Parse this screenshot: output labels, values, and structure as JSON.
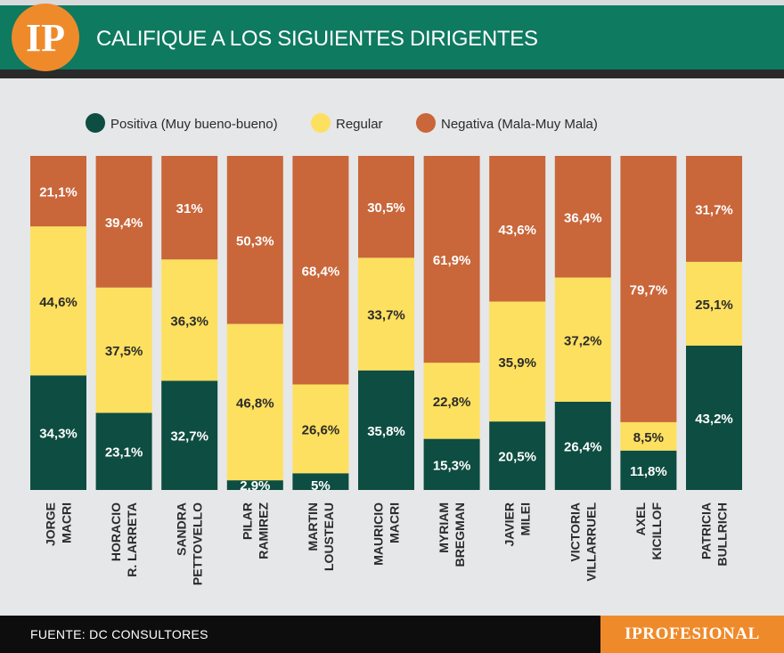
{
  "header": {
    "logo_text": "IP",
    "title": "CALIFIQUE A LOS SIGUIENTES DIRIGENTES"
  },
  "footer": {
    "source": "FUENTE: DC CONSULTORES",
    "brand": "IPROFESIONAL"
  },
  "colors": {
    "positive": "#0e4d41",
    "regular": "#fde05f",
    "negative": "#c9663a",
    "header_green": "#0e7a60",
    "accent_orange": "#ef8a2b"
  },
  "chart_data": {
    "type": "bar",
    "stacked": true,
    "legend_position": "top",
    "categories": [
      [
        "JORGE",
        "MACRI"
      ],
      [
        "HORACIO",
        "R. LARRETA"
      ],
      [
        "SANDRA",
        "PETTOVELLO"
      ],
      [
        "PILAR",
        "RAMIREZ"
      ],
      [
        "MARTIN",
        "LOUSTEAU"
      ],
      [
        "MAURICIO",
        "MACRI"
      ],
      [
        "MYRIAM",
        "BREGMAN"
      ],
      [
        "JAVIER",
        "MILEI"
      ],
      [
        "VICTORIA",
        "VILLARRUEL"
      ],
      [
        "AXEL",
        "KICILLOF"
      ],
      [
        "PATRICIA",
        "BULLRICH"
      ]
    ],
    "series": [
      {
        "name": "Positiva (Muy bueno-bueno)",
        "color": "#0e4d41",
        "label_color": "#ffffff",
        "values": [
          34.3,
          23.1,
          32.7,
          2.9,
          5,
          35.8,
          15.3,
          20.5,
          26.4,
          11.8,
          43.2
        ],
        "labels": [
          "34,3%",
          "23,1%",
          "32,7%",
          "2,9%",
          "5%",
          "35,8%",
          "15,3%",
          "20,5%",
          "26,4%",
          "11,8%",
          "43,2%"
        ]
      },
      {
        "name": "Regular",
        "color": "#fde05f",
        "label_color": "#2b2b2b",
        "values": [
          44.6,
          37.5,
          36.3,
          46.8,
          26.6,
          33.7,
          22.8,
          35.9,
          37.2,
          8.5,
          25.1
        ],
        "labels": [
          "44,6%",
          "37,5%",
          "36,3%",
          "46,8%",
          "26,6%",
          "33,7%",
          "22,8%",
          "35,9%",
          "37,2%",
          "8,5%",
          "25,1%"
        ]
      },
      {
        "name": "Negativa (Mala-Muy Mala)",
        "color": "#c9663a",
        "label_color": "#ffffff",
        "values": [
          21.1,
          39.4,
          31,
          50.3,
          68.4,
          30.5,
          61.9,
          43.6,
          36.4,
          79.7,
          31.7
        ],
        "labels": [
          "21,1%",
          "39,4%",
          "31%",
          "50,3%",
          "68,4%",
          "30,5%",
          "61,9%",
          "43,6%",
          "36,4%",
          "79,7%",
          "31,7%"
        ]
      }
    ]
  }
}
